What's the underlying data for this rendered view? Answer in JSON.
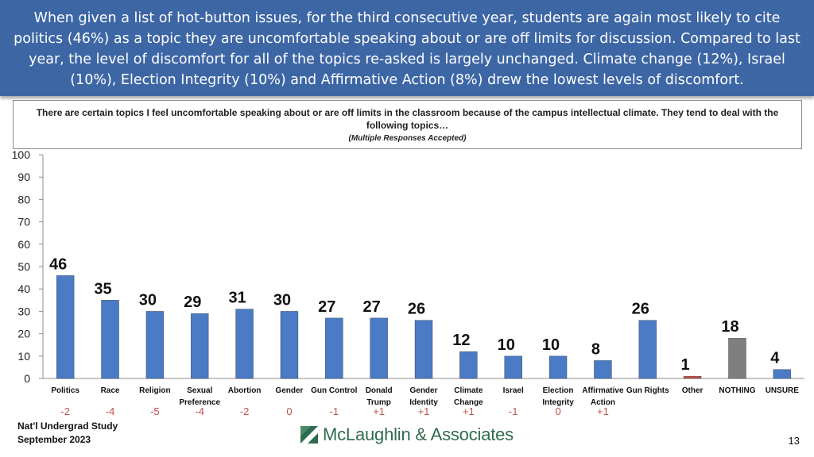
{
  "banner": {
    "text": "When given a list of hot-button issues, for the third consecutive year, students are again most likely to cite politics (46%) as a topic they are uncomfortable speaking about or are off limits for discussion. Compared to last year, the level of discomfort for all of the topics re-asked is largely unchanged. Climate change (12%), Israel (10%), Election Integrity (10%) and Affirmative Action (8%) drew the lowest levels of discomfort."
  },
  "question": {
    "text": "There are certain topics I feel uncomfortable speaking about or are off limits in the classroom because of the campus intellectual climate. They tend to deal with the following topics…",
    "note": "(Multiple Responses Accepted)"
  },
  "footer": {
    "study_line1": "Nat'l Undergrad Study",
    "study_line2": "September 2023",
    "logo_text": "McLaughlin & Associates",
    "page_number": "13"
  },
  "colors": {
    "banner": "#3d66a5",
    "bar_default": "#4a7bc4",
    "bar_other": "#c0504d",
    "bar_nothing": "#7f7f7f",
    "change_text": "#c0504d",
    "logo": "#2f6b4f"
  },
  "chart_data": {
    "type": "bar",
    "categories": [
      [
        "Politics"
      ],
      [
        "Race"
      ],
      [
        "Religion"
      ],
      [
        "Sexual",
        "Preference"
      ],
      [
        "Abortion"
      ],
      [
        "Gender"
      ],
      [
        "Gun Control"
      ],
      [
        "Donald",
        "Trump"
      ],
      [
        "Gender",
        "Identity"
      ],
      [
        "Climate",
        "Change"
      ],
      [
        "Israel"
      ],
      [
        "Election",
        "Integrity"
      ],
      [
        "Affirmative",
        "Action"
      ],
      [
        "Gun Rights"
      ],
      [
        "Other"
      ],
      [
        "NOTHING"
      ],
      [
        "UNSURE"
      ]
    ],
    "values": [
      46,
      35,
      30,
      29,
      31,
      30,
      27,
      27,
      26,
      12,
      10,
      10,
      8,
      26,
      1,
      18,
      4
    ],
    "data_labels": [
      "46",
      "35",
      "30",
      "29",
      "31",
      "30",
      "27",
      "27",
      "26",
      "12",
      "10",
      "10",
      "8",
      "26",
      "1",
      "18",
      "4"
    ],
    "bar_colors": [
      "#4a7bc4",
      "#4a7bc4",
      "#4a7bc4",
      "#4a7bc4",
      "#4a7bc4",
      "#4a7bc4",
      "#4a7bc4",
      "#4a7bc4",
      "#4a7bc4",
      "#4a7bc4",
      "#4a7bc4",
      "#4a7bc4",
      "#4a7bc4",
      "#4a7bc4",
      "#c0504d",
      "#7f7f7f",
      "#4a7bc4"
    ],
    "changes": [
      "-2",
      "-4",
      "-5",
      "-4",
      "-2",
      "0",
      "-1",
      "+1",
      "+1",
      "+1",
      "-1",
      "0",
      "+1",
      "",
      "",
      "",
      ""
    ],
    "ylim": [
      0,
      100
    ],
    "yticks": [
      "0",
      "10",
      "20",
      "30",
      "40",
      "50",
      "60",
      "70",
      "80",
      "90",
      "100"
    ],
    "xlabel": "",
    "ylabel": "",
    "grid": false,
    "legend": "none"
  }
}
